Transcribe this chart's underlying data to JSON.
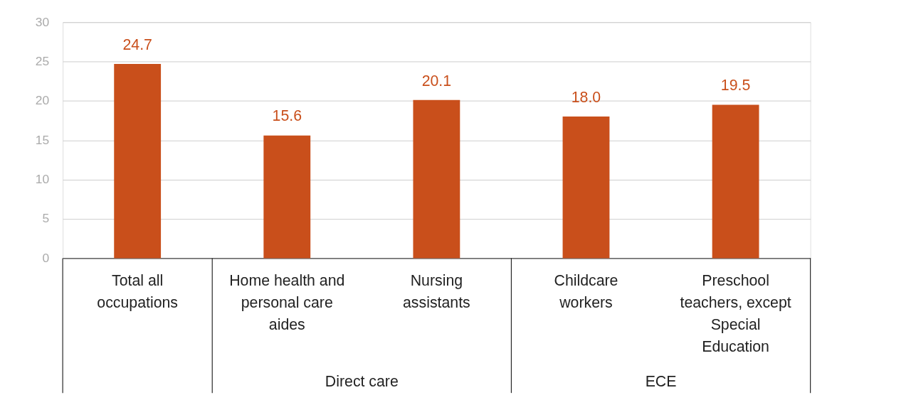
{
  "chart_data": {
    "type": "bar",
    "categories": [
      "Total all occupations",
      "Home health and personal care aides",
      "Nursing assistants",
      "Childcare workers",
      "Preschool teachers, except Special Education"
    ],
    "values": [
      24.7,
      15.6,
      20.1,
      18.0,
      19.5
    ],
    "value_labels": [
      "24.7",
      "15.6",
      "20.1",
      "18.0",
      "19.5"
    ],
    "color": "#c94f1b",
    "ylim": [
      0,
      30
    ],
    "yticks": [
      0,
      5,
      10,
      15,
      20,
      25,
      30
    ],
    "grid": "y",
    "annotations": [
      "Direct care",
      "ECE"
    ]
  }
}
